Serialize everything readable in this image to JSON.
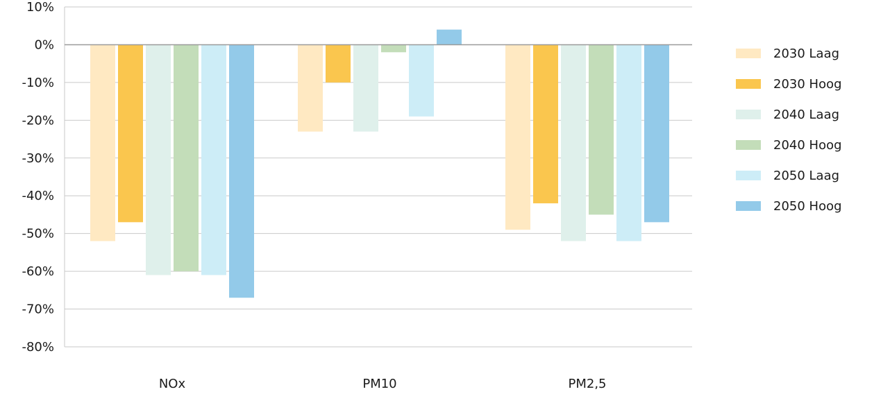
{
  "chart_data": {
    "type": "bar",
    "categories": [
      "NOx",
      "PM10",
      "PM2,5"
    ],
    "ylim": [
      -80,
      10
    ],
    "yticks": [
      10,
      0,
      -10,
      -20,
      -30,
      -40,
      -50,
      -60,
      -70,
      -80
    ],
    "ytick_labels": [
      "10%",
      "0%",
      "-10%",
      "-20%",
      "-30%",
      "-40%",
      "-50%",
      "-60%",
      "-70%",
      "-80%"
    ],
    "grid": true,
    "legend_position": "right",
    "series": [
      {
        "name": "2030 Laag",
        "color": "#FFE9C2",
        "values": [
          -52,
          -23,
          -49
        ]
      },
      {
        "name": "2030 Hoog",
        "color": "#FAC64E",
        "values": [
          -47,
          -10,
          -42
        ]
      },
      {
        "name": "2040 Laag",
        "color": "#DFF0EB",
        "values": [
          -61,
          -23,
          -52
        ]
      },
      {
        "name": "2040 Hoog",
        "color": "#C3DDB9",
        "values": [
          -60,
          -2,
          -45
        ]
      },
      {
        "name": "2050 Laag",
        "color": "#CDEDF7",
        "values": [
          -61,
          -19,
          -52
        ]
      },
      {
        "name": "2050 Hoog",
        "color": "#93CAE9",
        "values": [
          -67,
          4,
          -47
        ]
      }
    ]
  }
}
